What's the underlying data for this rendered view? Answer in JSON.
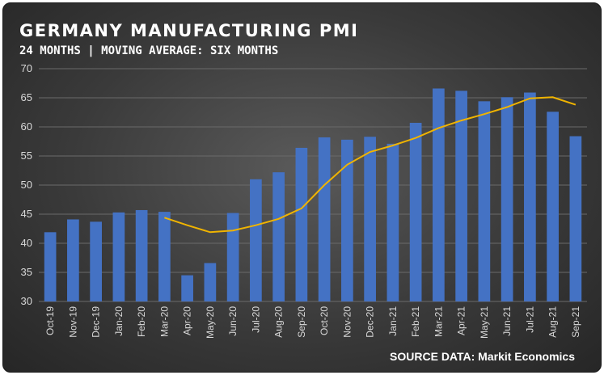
{
  "colors": {
    "bar": "#4472c4",
    "line": "#f0b400",
    "grid": "#6a6a6a",
    "text": "#ffffff"
  },
  "chart_data": {
    "type": "bar",
    "title": "GERMANY MANUFACTURING PMI",
    "subtitle": "24 MONTHS | MOVING AVERAGE: SIX MONTHS",
    "source": "SOURCE DATA: Markit Economics",
    "categories": [
      "Oct-19",
      "Nov-19",
      "Dec-19",
      "Jan-20",
      "Feb-20",
      "Mar-20",
      "Apr-20",
      "May-20",
      "Jun-20",
      "Jul-20",
      "Aug-20",
      "Sep-20",
      "Oct-20",
      "Nov-20",
      "Dec-20",
      "Jan-21",
      "Feb-21",
      "Mar-21",
      "Apr-21",
      "May-21",
      "Jun-21",
      "Jul-21",
      "Aug-21",
      "Sep-21"
    ],
    "series": [
      {
        "type": "bar",
        "values": [
          41.9,
          44.1,
          43.7,
          45.3,
          45.7,
          45.4,
          34.5,
          36.6,
          45.2,
          51.0,
          52.2,
          56.4,
          58.2,
          57.8,
          58.3,
          57.1,
          60.7,
          66.6,
          66.2,
          64.4,
          65.1,
          65.9,
          62.6,
          58.4
        ]
      },
      {
        "type": "line",
        "values": [
          null,
          null,
          null,
          null,
          null,
          44.4,
          43.1,
          41.9,
          42.2,
          43.1,
          44.2,
          46.0,
          50.0,
          53.5,
          55.7,
          56.8,
          58.1,
          59.8,
          61.1,
          62.2,
          63.4,
          64.9,
          65.1,
          63.8
        ]
      }
    ],
    "yticks": [
      "70",
      "65",
      "60",
      "55",
      "50",
      "45",
      "40",
      "35",
      "30"
    ],
    "ylim": [
      30,
      70
    ],
    "grid": true
  }
}
